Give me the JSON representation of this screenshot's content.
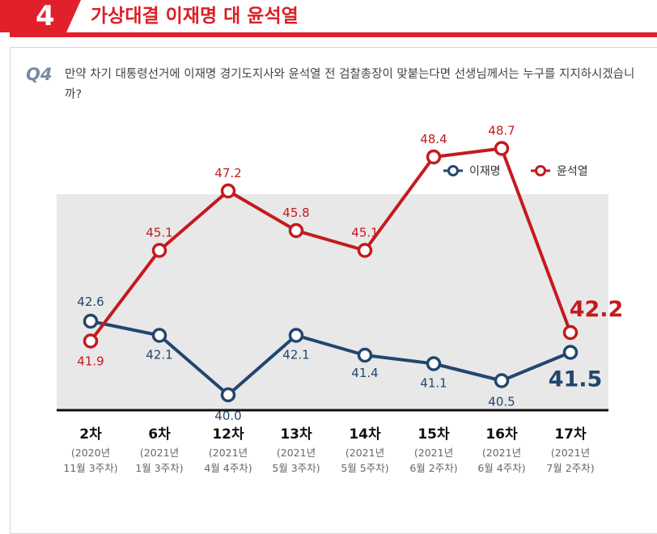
{
  "header": {
    "number": "4",
    "title": "가상대결 이재명 대 윤석열"
  },
  "question": {
    "label": "Q4",
    "text": "만약 차기 대통령선거에 이재명 경기도지사와 윤석열 전 검찰총장이 맞붙는다면 선생님께서는 누구를 지지하시겠습니까?"
  },
  "chart_data": {
    "type": "line",
    "categories": [
      "2차",
      "6차",
      "12차",
      "13차",
      "14차",
      "15차",
      "16차",
      "17차"
    ],
    "category_sublabels": [
      [
        "(2020년",
        "11월 3주차)"
      ],
      [
        "(2021년",
        "1월 3주차)"
      ],
      [
        "(2021년",
        "4월 4주차)"
      ],
      [
        "(2021년",
        "5월 3주차)"
      ],
      [
        "(2021년",
        "5월 5주차)"
      ],
      [
        "(2021년",
        "6월 2주차)"
      ],
      [
        "(2021년",
        "6월 4주차)"
      ],
      [
        "(2021년",
        "7월 2주차)"
      ]
    ],
    "series": [
      {
        "name": "이재명",
        "values": [
          42.6,
          42.1,
          40.0,
          42.1,
          41.4,
          41.1,
          40.5,
          41.5
        ],
        "color": "#22466f"
      },
      {
        "name": "윤석열",
        "values": [
          41.9,
          45.1,
          47.2,
          45.8,
          45.1,
          48.4,
          48.7,
          42.2
        ],
        "color": "#c41a1f"
      }
    ],
    "legend_position": "top-right",
    "grid": false
  }
}
